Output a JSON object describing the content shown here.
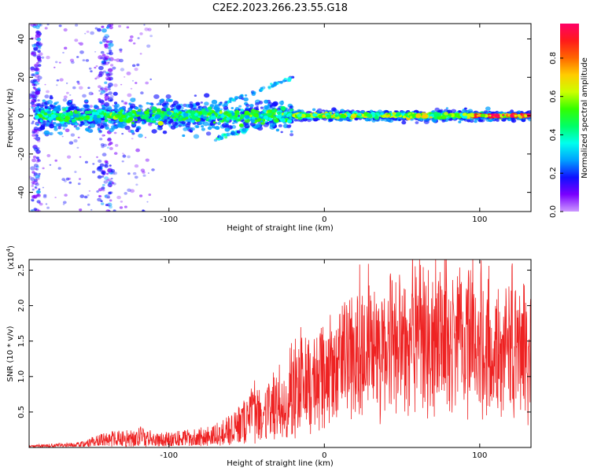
{
  "page_title": "C2E2.2023.266.23.55.G18",
  "colors": {
    "snr_line": "#ee2222",
    "axis": "#000000",
    "colorbar_stops": [
      "#cc99ff",
      "#7a00ff",
      "#1010ff",
      "#00a0ff",
      "#00ffee",
      "#00ff66",
      "#33ff00",
      "#ccff00",
      "#ffcc00",
      "#ff6600",
      "#ff1a1a",
      "#ff0066"
    ]
  },
  "chart_data": [
    {
      "type": "heatmap",
      "name": "spectrogram",
      "xlabel": "Height of straight line (km)",
      "ylabel": "Frequency (Hz)",
      "xlim": [
        -190,
        133
      ],
      "ylim": [
        -50,
        48
      ],
      "x_ticks": [
        -100,
        0,
        100
      ],
      "x_tick_labels": [
        "-100",
        "0",
        "100"
      ],
      "y_ticks": [
        -40,
        -20,
        0,
        20,
        40
      ],
      "y_tick_labels": [
        "-40",
        "-20",
        "0",
        "20",
        "40"
      ],
      "colorbar": {
        "label": "Normalized spectral amplitude",
        "range": [
          0.0,
          0.98
        ],
        "ticks": [
          0.0,
          0.2,
          0.4,
          0.6,
          0.8
        ],
        "tick_labels": [
          "0.0",
          "0.2",
          "0.4",
          "0.6",
          "0.8"
        ]
      },
      "bands": [
        {
          "x_from": -185,
          "x_to": -20,
          "center_hz": 0,
          "halfwidth_hz": 6,
          "amplitude": 0.45
        },
        {
          "x_from": -20,
          "x_to": 133,
          "center_hz": 0,
          "halfwidth_hz": 2,
          "amplitude": 0.55
        },
        {
          "x_from": 95,
          "x_to": 133,
          "center_hz": 0,
          "halfwidth_hz": 1,
          "amplitude": 0.85
        }
      ],
      "streaks": [
        {
          "x_from": -188,
          "x_to": -183,
          "hz_from": -50,
          "hz_to": 48,
          "amplitude": 0.2
        },
        {
          "x_from": -145,
          "x_to": -137,
          "hz_from": -50,
          "hz_to": 48,
          "amplitude": 0.2
        }
      ],
      "arcs": [
        {
          "x_from": -70,
          "x_to": -20,
          "hz_from": 5,
          "hz_to": 20,
          "amplitude": 0.3
        },
        {
          "x_from": -70,
          "x_to": -40,
          "hz_from": -12,
          "hz_to": -5,
          "amplitude": 0.35
        }
      ]
    },
    {
      "type": "line",
      "name": "snr",
      "xlabel": "Height of straight line (km)",
      "ylabel": "SNR (10 * v/v)",
      "y_multiplier_label": "(x10",
      "y_multiplier_exp": "4",
      "xlim": [
        -190,
        133
      ],
      "ylim": [
        0,
        26500
      ],
      "x_ticks": [
        -100,
        0,
        100
      ],
      "x_tick_labels": [
        "-100",
        "0",
        "100"
      ],
      "y_ticks": [
        5000,
        10000,
        15000,
        20000,
        25000
      ],
      "y_tick_labels": [
        "0.5",
        "1.0",
        "1.5",
        "2.0",
        "2.5"
      ],
      "envelope": {
        "x": [
          -190,
          -160,
          -150,
          -140,
          -125,
          -118,
          -110,
          -100,
          -90,
          -80,
          -70,
          -60,
          -50,
          -45,
          -40,
          -35,
          -30,
          -25,
          -20,
          -15,
          -10,
          -5,
          0,
          10,
          20,
          30,
          40,
          50,
          60,
          70,
          80,
          90,
          100,
          110,
          120,
          125,
          133
        ],
        "low": [
          100,
          200,
          250,
          300,
          300,
          300,
          300,
          300,
          300,
          400,
          600,
          800,
          1200,
          1500,
          1800,
          2000,
          2200,
          2500,
          3500,
          5000,
          6000,
          6500,
          7000,
          8000,
          9000,
          10000,
          10000,
          11000,
          11000,
          10500,
          11000,
          10500,
          10500,
          10000,
          9500,
          9000,
          9000
        ],
        "high": [
          300,
          700,
          1300,
          2200,
          2500,
          3200,
          2000,
          2200,
          2500,
          2800,
          3500,
          4500,
          7000,
          9500,
          6500,
          9000,
          10500,
          12000,
          16000,
          18000,
          17000,
          15500,
          16000,
          20000,
          21500,
          22000,
          21000,
          22500,
          24500,
          23500,
          26000,
          22500,
          24000,
          23000,
          23500,
          21000,
          20000
        ]
      }
    }
  ]
}
